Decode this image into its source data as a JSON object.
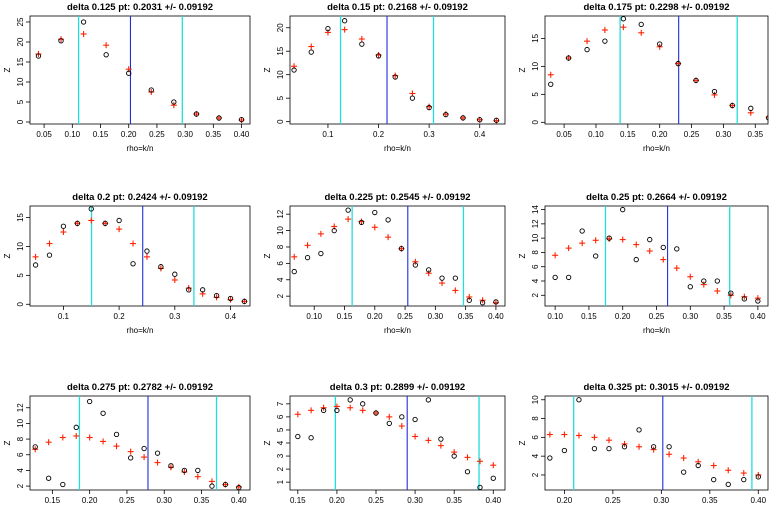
{
  "colors": {
    "points": "#000000",
    "fit": "#ff2200",
    "pt_line": "#1f2fdc",
    "band_lines": "#22dddd"
  },
  "chart_data": [
    {
      "type": "scatter",
      "title": "delta 0.125 pt: 0.2031 +/- 0.09192",
      "xlabel": "rho=k/n",
      "ylabel": "Z",
      "xlim": [
        0.025,
        0.415
      ],
      "ylim": [
        -0.5,
        26.5
      ],
      "xticks": [
        "0.05",
        "0.10",
        "0.15",
        "0.20",
        "0.25",
        "0.30",
        "0.35",
        "0.40"
      ],
      "yticks": [
        "0",
        "5",
        "10",
        "15",
        "20",
        "25"
      ],
      "vlines": {
        "pt": 0.2031,
        "band": [
          0.1112,
          0.295
        ]
      },
      "observed": {
        "x": [
          0.04,
          0.08,
          0.12,
          0.16,
          0.2,
          0.24,
          0.28,
          0.32,
          0.36,
          0.4
        ],
        "y": [
          16.5,
          20.3,
          25.0,
          16.8,
          12.2,
          8.0,
          5.0,
          2.0,
          1.0,
          0.6
        ]
      },
      "fitted": {
        "x": [
          0.04,
          0.08,
          0.12,
          0.16,
          0.2,
          0.24,
          0.28,
          0.32,
          0.36,
          0.4
        ],
        "y": [
          17.0,
          20.7,
          22.0,
          19.2,
          13.2,
          7.5,
          4.2,
          2.0,
          1.0,
          0.5
        ]
      }
    },
    {
      "type": "scatter",
      "title": "delta 0.15 pt: 0.2168 +/- 0.09192",
      "xlabel": "rho=k/n",
      "ylabel": "Z",
      "xlim": [
        0.025,
        0.45
      ],
      "ylim": [
        -0.5,
        22.5
      ],
      "xticks": [
        "0.1",
        "0.2",
        "0.3",
        "0.4"
      ],
      "yticks": [
        "0",
        "5",
        "10",
        "15",
        "20"
      ],
      "vlines": {
        "pt": 0.2168,
        "band": [
          0.1249,
          0.3087
        ]
      },
      "observed": {
        "x": [
          0.033,
          0.067,
          0.1,
          0.133,
          0.167,
          0.2,
          0.233,
          0.267,
          0.3,
          0.333,
          0.367,
          0.4,
          0.433
        ],
        "y": [
          11.0,
          14.8,
          19.8,
          21.5,
          16.5,
          14.0,
          9.5,
          5.0,
          3.0,
          1.5,
          0.8,
          0.4,
          0.3
        ]
      },
      "fitted": {
        "x": [
          0.033,
          0.067,
          0.1,
          0.133,
          0.167,
          0.2,
          0.233,
          0.267,
          0.3,
          0.333,
          0.367,
          0.4,
          0.433
        ],
        "y": [
          11.8,
          16.0,
          19.0,
          19.6,
          17.6,
          14.2,
          9.8,
          6.0,
          3.2,
          1.6,
          0.8,
          0.4,
          0.2
        ]
      }
    },
    {
      "type": "scatter",
      "title": "delta 0.175 pt: 0.2298 +/- 0.09192",
      "xlabel": "rho=k/n",
      "ylabel": "Z",
      "xlim": [
        0.02,
        0.37
      ],
      "ylim": [
        -0.3,
        19.0
      ],
      "xticks": [
        "0.05",
        "0.10",
        "0.15",
        "0.20",
        "0.25",
        "0.30",
        "0.35"
      ],
      "yticks": [
        "0",
        "5",
        "10",
        "15"
      ],
      "vlines": {
        "pt": 0.2298,
        "band": [
          0.1379,
          0.3217
        ]
      },
      "observed": {
        "x": [
          0.029,
          0.057,
          0.086,
          0.114,
          0.143,
          0.171,
          0.2,
          0.229,
          0.257,
          0.286,
          0.314,
          0.343,
          0.371
        ],
        "y": [
          6.8,
          11.5,
          13.0,
          14.5,
          18.5,
          17.5,
          14.0,
          10.5,
          7.5,
          5.5,
          3.0,
          2.5,
          0.8
        ]
      },
      "fitted": {
        "x": [
          0.029,
          0.057,
          0.086,
          0.114,
          0.143,
          0.171,
          0.2,
          0.229,
          0.257,
          0.286,
          0.314,
          0.343,
          0.371
        ],
        "y": [
          8.5,
          11.5,
          14.5,
          16.5,
          17.0,
          16.0,
          13.5,
          10.5,
          7.5,
          4.9,
          3.0,
          1.7,
          0.9
        ]
      }
    },
    {
      "type": "scatter",
      "title": "delta 0.2 pt: 0.2424 +/- 0.09192",
      "xlabel": "rho=k/n",
      "ylabel": "Z",
      "xlim": [
        0.04,
        0.435
      ],
      "ylim": [
        -0.3,
        17.0
      ],
      "xticks": [
        "0.1",
        "0.2",
        "0.3",
        "0.4"
      ],
      "yticks": [
        "0",
        "5",
        "10",
        "15"
      ],
      "vlines": {
        "pt": 0.2424,
        "band": [
          0.1505,
          0.3343
        ]
      },
      "observed": {
        "x": [
          0.05,
          0.075,
          0.1,
          0.125,
          0.15,
          0.175,
          0.2,
          0.225,
          0.25,
          0.275,
          0.3,
          0.325,
          0.35,
          0.375,
          0.4,
          0.425
        ],
        "y": [
          6.8,
          8.5,
          13.5,
          14.0,
          16.5,
          14.0,
          14.5,
          7.0,
          9.2,
          6.5,
          5.2,
          2.5,
          2.5,
          1.5,
          1.0,
          0.5
        ]
      },
      "fitted": {
        "x": [
          0.05,
          0.075,
          0.1,
          0.125,
          0.15,
          0.175,
          0.2,
          0.225,
          0.25,
          0.275,
          0.3,
          0.325,
          0.35,
          0.375,
          0.4,
          0.425
        ],
        "y": [
          8.2,
          10.5,
          12.5,
          14.0,
          14.5,
          14.0,
          13.0,
          10.5,
          8.2,
          6.2,
          4.2,
          2.8,
          1.8,
          1.2,
          0.8,
          0.5
        ]
      }
    },
    {
      "type": "scatter",
      "title": "delta 0.225 pt: 0.2545 +/- 0.09192",
      "xlabel": "rho=k/n",
      "ylabel": "Z",
      "xlim": [
        0.06,
        0.415
      ],
      "ylim": [
        0.8,
        13.0
      ],
      "xticks": [
        "0.10",
        "0.15",
        "0.20",
        "0.25",
        "0.30",
        "0.35",
        "0.40"
      ],
      "yticks": [
        "2",
        "4",
        "6",
        "8",
        "10",
        "12"
      ],
      "vlines": {
        "pt": 0.2545,
        "band": [
          0.1626,
          0.3464
        ]
      },
      "observed": {
        "x": [
          0.067,
          0.089,
          0.111,
          0.133,
          0.156,
          0.178,
          0.2,
          0.222,
          0.244,
          0.267,
          0.289,
          0.311,
          0.333,
          0.356,
          0.378,
          0.4
        ],
        "y": [
          5.0,
          6.7,
          7.2,
          10.0,
          12.5,
          11.0,
          12.2,
          11.3,
          7.8,
          5.8,
          5.2,
          4.2,
          4.2,
          1.5,
          1.2,
          1.3
        ]
      },
      "fitted": {
        "x": [
          0.067,
          0.089,
          0.111,
          0.133,
          0.156,
          0.178,
          0.2,
          0.222,
          0.244,
          0.267,
          0.289,
          0.311,
          0.333,
          0.356,
          0.378,
          0.4
        ],
        "y": [
          6.8,
          8.2,
          9.6,
          10.5,
          11.4,
          11.1,
          10.4,
          9.2,
          7.8,
          6.2,
          4.8,
          3.6,
          2.7,
          1.9,
          1.5,
          1.2
        ]
      }
    },
    {
      "type": "scatter",
      "title": "delta 0.25 pt: 0.2664 +/- 0.09192",
      "xlabel": "rho=k/n",
      "ylabel": "Z",
      "xlim": [
        0.085,
        0.415
      ],
      "ylim": [
        0.5,
        14.5
      ],
      "xticks": [
        "0.10",
        "0.15",
        "0.20",
        "0.25",
        "0.30",
        "0.35",
        "0.40"
      ],
      "yticks": [
        "2",
        "4",
        "6",
        "8",
        "10",
        "12",
        "14"
      ],
      "vlines": {
        "pt": 0.2664,
        "band": [
          0.1745,
          0.3583
        ]
      },
      "observed": {
        "x": [
          0.1,
          0.12,
          0.14,
          0.16,
          0.18,
          0.2,
          0.22,
          0.24,
          0.26,
          0.28,
          0.3,
          0.32,
          0.34,
          0.36,
          0.38,
          0.4
        ],
        "y": [
          4.5,
          4.5,
          11.0,
          7.5,
          10.0,
          14.0,
          7.0,
          9.8,
          8.7,
          8.5,
          3.2,
          4.0,
          4.0,
          2.3,
          1.5,
          1.2
        ]
      },
      "fitted": {
        "x": [
          0.1,
          0.12,
          0.14,
          0.16,
          0.18,
          0.2,
          0.22,
          0.24,
          0.26,
          0.28,
          0.3,
          0.32,
          0.34,
          0.36,
          0.38,
          0.4
        ],
        "y": [
          7.6,
          8.6,
          9.3,
          9.7,
          9.9,
          9.8,
          9.1,
          8.2,
          7.0,
          5.8,
          4.6,
          3.5,
          2.6,
          2.0,
          1.8,
          1.6
        ]
      }
    },
    {
      "type": "scatter",
      "title": "delta 0.275 pt: 0.2782 +/- 0.09192",
      "xlabel": "rho=k/n",
      "ylabel": "Z",
      "xlim": [
        0.12,
        0.415
      ],
      "ylim": [
        1.5,
        13.5
      ],
      "xticks": [
        "0.15",
        "0.20",
        "0.25",
        "0.30",
        "0.35",
        "0.40"
      ],
      "yticks": [
        "2",
        "4",
        "6",
        "8",
        "10",
        "12"
      ],
      "vlines": {
        "pt": 0.2782,
        "band": [
          0.1863,
          0.3701
        ]
      },
      "observed": {
        "x": [
          0.127,
          0.145,
          0.164,
          0.182,
          0.2,
          0.218,
          0.236,
          0.255,
          0.273,
          0.291,
          0.309,
          0.327,
          0.345,
          0.364,
          0.382,
          0.4
        ],
        "y": [
          7.0,
          3.0,
          2.2,
          9.5,
          12.8,
          11.3,
          8.6,
          5.6,
          6.8,
          6.2,
          4.6,
          4.0,
          4.0,
          2.0,
          2.2,
          1.8
        ]
      },
      "fitted": {
        "x": [
          0.127,
          0.145,
          0.164,
          0.182,
          0.2,
          0.218,
          0.236,
          0.255,
          0.273,
          0.291,
          0.309,
          0.327,
          0.345,
          0.364,
          0.382,
          0.4
        ],
        "y": [
          6.7,
          7.6,
          8.2,
          8.4,
          8.2,
          7.7,
          7.1,
          6.4,
          5.7,
          5.0,
          4.4,
          3.8,
          3.2,
          2.6,
          2.2,
          1.9
        ]
      }
    },
    {
      "type": "scatter",
      "title": "delta 0.3 pt: 0.2899 +/- 0.09192",
      "xlabel": "rho=k/n",
      "ylabel": "Z",
      "xlim": [
        0.14,
        0.415
      ],
      "ylim": [
        0.4,
        7.6
      ],
      "xticks": [
        "0.15",
        "0.20",
        "0.25",
        "0.30",
        "0.35",
        "0.40"
      ],
      "yticks": [
        "1",
        "2",
        "3",
        "4",
        "5",
        "6",
        "7"
      ],
      "vlines": {
        "pt": 0.2899,
        "band": [
          0.198,
          0.3818
        ]
      },
      "observed": {
        "x": [
          0.15,
          0.167,
          0.183,
          0.2,
          0.217,
          0.233,
          0.25,
          0.267,
          0.283,
          0.3,
          0.317,
          0.333,
          0.35,
          0.367,
          0.383,
          0.4
        ],
        "y": [
          4.5,
          4.4,
          6.5,
          6.5,
          7.3,
          7.0,
          6.3,
          5.5,
          6.0,
          5.8,
          7.3,
          4.3,
          3.0,
          1.8,
          0.6,
          1.3
        ]
      },
      "fitted": {
        "x": [
          0.15,
          0.167,
          0.183,
          0.2,
          0.217,
          0.233,
          0.25,
          0.267,
          0.283,
          0.3,
          0.317,
          0.333,
          0.35,
          0.367,
          0.383,
          0.4
        ],
        "y": [
          6.2,
          6.5,
          6.7,
          6.8,
          6.7,
          6.5,
          6.3,
          6.0,
          5.3,
          4.5,
          4.2,
          3.8,
          3.3,
          2.9,
          2.6,
          2.3
        ]
      }
    },
    {
      "type": "scatter",
      "title": "delta 0.325 pt: 0.3015 +/- 0.09192",
      "xlabel": "rho=k/n",
      "ylabel": "Z",
      "xlim": [
        0.18,
        0.41
      ],
      "ylim": [
        0.4,
        10.4
      ],
      "xticks": [
        "0.20",
        "0.25",
        "0.30",
        "0.35",
        "0.40"
      ],
      "yticks": [
        "2",
        "4",
        "6",
        "8",
        "10"
      ],
      "vlines": {
        "pt": 0.3015,
        "band": [
          0.2096,
          0.3934
        ]
      },
      "observed": {
        "x": [
          0.185,
          0.2,
          0.215,
          0.231,
          0.246,
          0.262,
          0.277,
          0.292,
          0.308,
          0.323,
          0.338,
          0.354,
          0.369,
          0.385,
          0.4
        ],
        "y": [
          3.8,
          4.6,
          10.0,
          4.8,
          4.8,
          5.0,
          6.8,
          5.0,
          5.0,
          2.3,
          3.0,
          1.5,
          1.0,
          1.5,
          1.8
        ]
      },
      "fitted": {
        "x": [
          0.185,
          0.2,
          0.215,
          0.231,
          0.246,
          0.262,
          0.277,
          0.292,
          0.308,
          0.323,
          0.338,
          0.354,
          0.369,
          0.385,
          0.4
        ],
        "y": [
          6.3,
          6.3,
          6.2,
          6.0,
          5.7,
          5.3,
          5.0,
          4.7,
          4.2,
          3.8,
          3.4,
          3.0,
          2.5,
          2.2,
          2.0
        ]
      }
    }
  ]
}
